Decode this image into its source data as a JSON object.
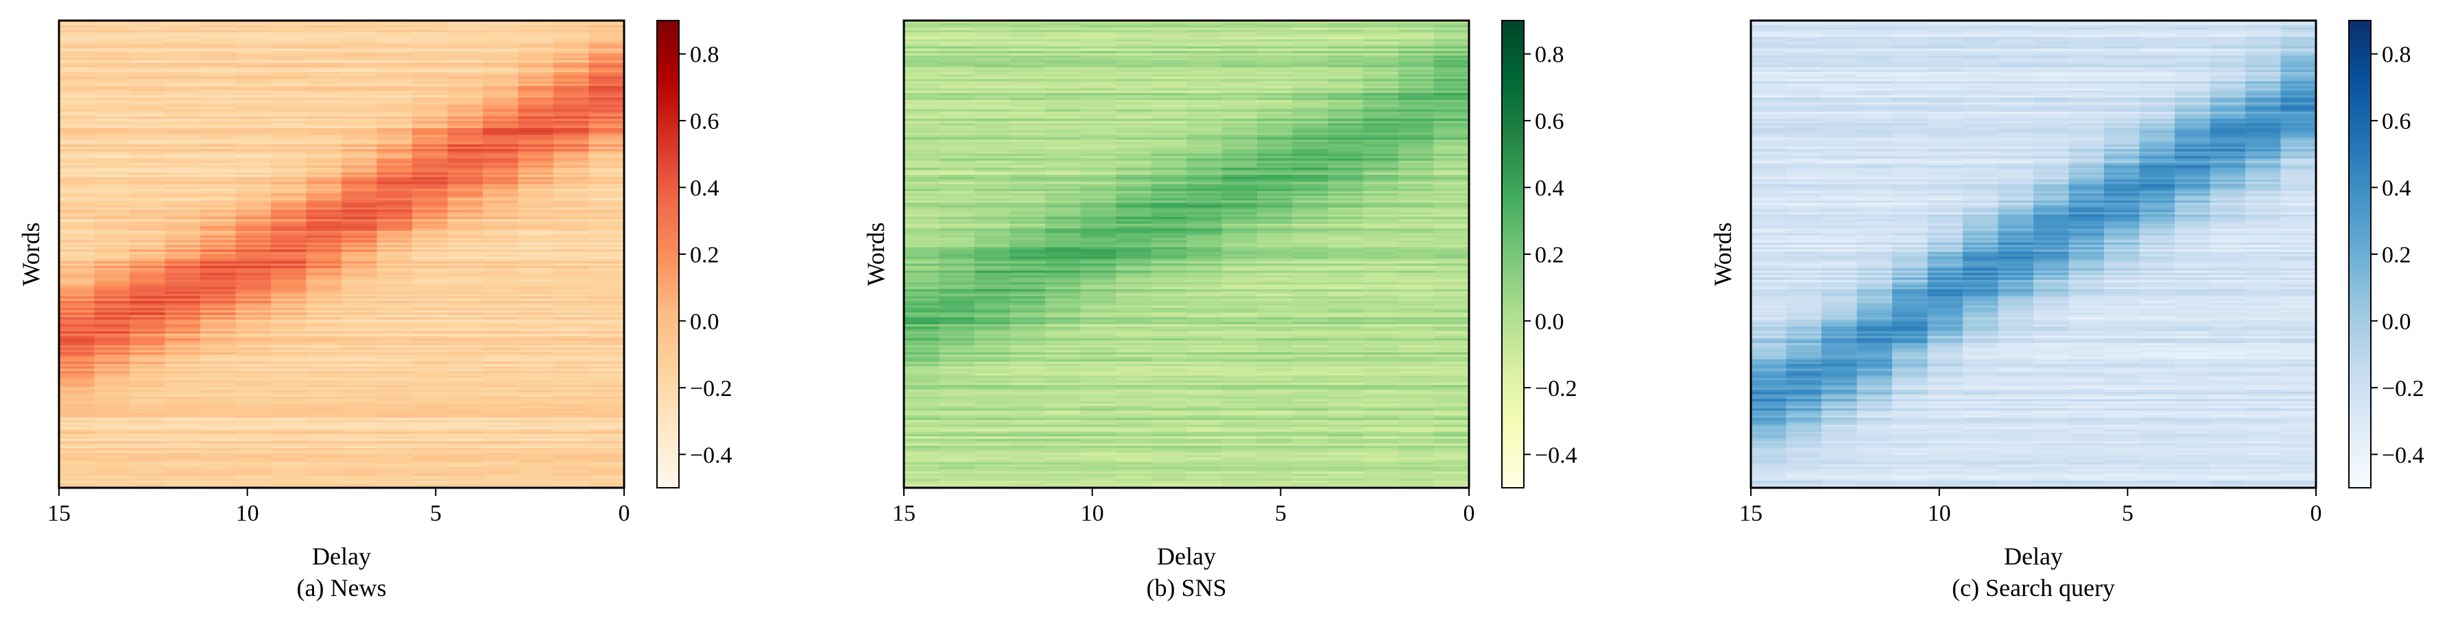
{
  "chart_data": [
    {
      "type": "heatmap",
      "title": "",
      "caption": "(a) News",
      "xlabel": "Delay",
      "ylabel": "Words",
      "xlim": [
        15,
        0
      ],
      "x_ticks": [
        15,
        10,
        5,
        0
      ],
      "x_tick_labels": [
        "15",
        "10",
        "5",
        "0"
      ],
      "y_ticks": [],
      "colorbar": {
        "range": [
          -0.5,
          0.9
        ],
        "ticks": [
          0.8,
          0.6,
          0.4,
          0.2,
          0.0,
          -0.2,
          -0.4
        ],
        "tick_labels": [
          "0.8",
          "0.6",
          "0.4",
          "0.2",
          "0.0",
          "−0.2",
          "−0.4"
        ],
        "colormap": "OrRd",
        "colors": [
          "#fff7ec",
          "#fee8c8",
          "#fdd49e",
          "#fdbb84",
          "#fc8d59",
          "#ef6548",
          "#d7301f",
          "#b30000",
          "#7f0000"
        ]
      },
      "delays": [
        15,
        14,
        13,
        12,
        11,
        10,
        9,
        8,
        7,
        6,
        5,
        4,
        3,
        2,
        1,
        0
      ],
      "num_word_rows": 200,
      "peak_row_at_delay": [
        0.67,
        0.64,
        0.61,
        0.58,
        0.55,
        0.52,
        0.49,
        0.45,
        0.41,
        0.37,
        0.33,
        0.3,
        0.27,
        0.23,
        0.2,
        0.16
      ],
      "peak_value": 0.38,
      "background_value": -0.15
    },
    {
      "type": "heatmap",
      "title": "",
      "caption": "(b) SNS",
      "xlabel": "Delay",
      "ylabel": "Words",
      "xlim": [
        15,
        0
      ],
      "x_ticks": [
        15,
        10,
        5,
        0
      ],
      "x_tick_labels": [
        "15",
        "10",
        "5",
        "0"
      ],
      "y_ticks": [],
      "colorbar": {
        "range": [
          -0.5,
          0.9
        ],
        "ticks": [
          0.8,
          0.6,
          0.4,
          0.2,
          0.0,
          -0.2,
          -0.4
        ],
        "tick_labels": [
          "0.8",
          "0.6",
          "0.4",
          "0.2",
          "0.0",
          "−0.2",
          "−0.4"
        ],
        "colormap": "YlGn",
        "colors": [
          "#ffffe5",
          "#f7fcb9",
          "#d9f0a3",
          "#addd8e",
          "#78c679",
          "#41ab5d",
          "#238443",
          "#006837",
          "#004529"
        ]
      },
      "delays": [
        15,
        14,
        13,
        12,
        11,
        10,
        9,
        8,
        7,
        6,
        5,
        4,
        3,
        2,
        1,
        0
      ],
      "num_word_rows": 200,
      "peak_row_at_delay": [
        0.63,
        0.6,
        0.57,
        0.54,
        0.51,
        0.48,
        0.45,
        0.42,
        0.39,
        0.36,
        0.33,
        0.3,
        0.27,
        0.24,
        0.2,
        0.16
      ],
      "peak_value": 0.3,
      "background_value": 0.0
    },
    {
      "type": "heatmap",
      "title": "",
      "caption": "(c) Search query",
      "xlabel": "Delay",
      "ylabel": "Words",
      "xlim": [
        15,
        0
      ],
      "x_ticks": [
        15,
        10,
        5,
        0
      ],
      "x_tick_labels": [
        "15",
        "10",
        "5",
        "0"
      ],
      "y_ticks": [],
      "colorbar": {
        "range": [
          -0.5,
          0.9
        ],
        "ticks": [
          0.8,
          0.6,
          0.4,
          0.2,
          0.0,
          -0.2,
          -0.4
        ],
        "tick_labels": [
          "0.8",
          "0.6",
          "0.4",
          "0.2",
          "0.0",
          "−0.2",
          "−0.4"
        ],
        "colormap": "Blues",
        "colors": [
          "#f7fbff",
          "#deebf7",
          "#c6dbef",
          "#9ecae1",
          "#6baed6",
          "#4292c6",
          "#2171b5",
          "#08519c",
          "#08306b"
        ]
      },
      "delays": [
        15,
        14,
        13,
        12,
        11,
        10,
        9,
        8,
        7,
        6,
        5,
        4,
        3,
        2,
        1,
        0
      ],
      "num_word_rows": 200,
      "peak_row_at_delay": [
        0.8,
        0.77,
        0.73,
        0.69,
        0.64,
        0.59,
        0.54,
        0.5,
        0.46,
        0.42,
        0.38,
        0.34,
        0.3,
        0.26,
        0.23,
        0.18
      ],
      "peak_value": 0.38,
      "background_value": -0.25
    }
  ]
}
